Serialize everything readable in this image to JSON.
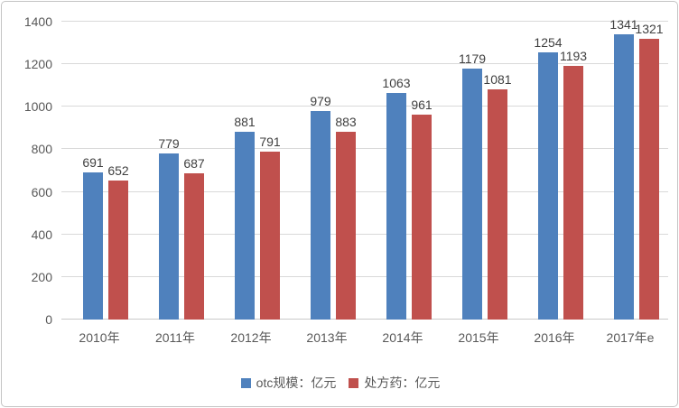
{
  "chart_data": {
    "type": "bar",
    "title": "",
    "categories": [
      "2010年",
      "2011年",
      "2012年",
      "2013年",
      "2014年",
      "2015年",
      "2016年",
      "2017年e"
    ],
    "series": [
      {
        "name": "otc规模：亿元",
        "color": "#4F81BD",
        "values": [
          691,
          779,
          881,
          979,
          1063,
          1179,
          1254,
          1341
        ]
      },
      {
        "name": "处方药：亿元",
        "color": "#C0504D",
        "values": [
          652,
          687,
          791,
          883,
          961,
          1081,
          1193,
          1321
        ]
      }
    ],
    "xlabel": "",
    "ylabel": "",
    "ylim": [
      0,
      1400
    ],
    "yticks": [
      0,
      200,
      400,
      600,
      800,
      1000,
      1200,
      1400
    ],
    "grid": true,
    "gridline_color": "#D9D9D9",
    "tick_label_color": "#595959",
    "value_label_color": "#404040",
    "legend_position": "bottom"
  }
}
